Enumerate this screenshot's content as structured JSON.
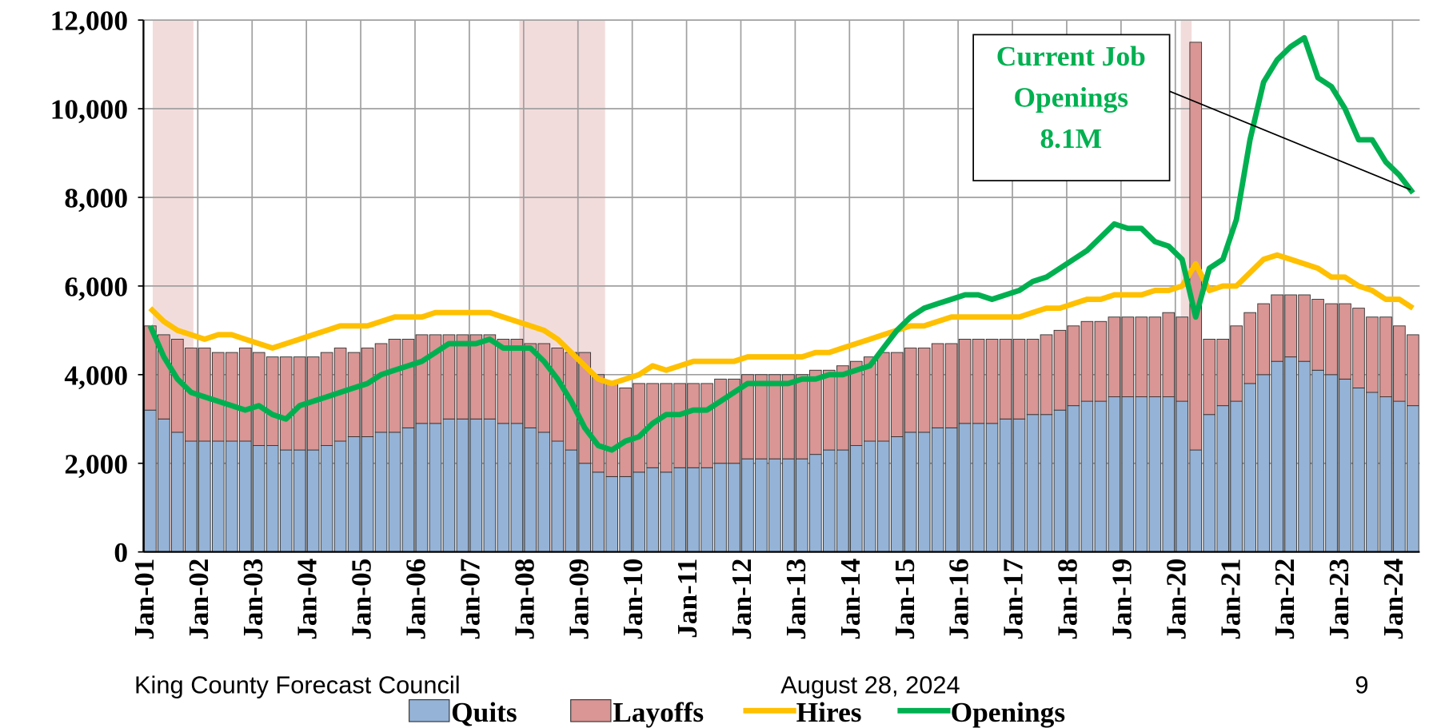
{
  "chart_data": {
    "type": "bar",
    "categories": [
      "Jan-01",
      null,
      null,
      null,
      "Jan-02",
      null,
      null,
      null,
      "Jan-03",
      null,
      null,
      null,
      "Jan-04",
      null,
      null,
      null,
      "Jan-05",
      null,
      null,
      null,
      "Jan-06",
      null,
      null,
      null,
      "Jan-07",
      null,
      null,
      null,
      "Jan-08",
      null,
      null,
      null,
      "Jan-09",
      null,
      null,
      null,
      "Jan-10",
      null,
      null,
      null,
      "Jan-11",
      null,
      null,
      null,
      "Jan-12",
      null,
      null,
      null,
      "Jan-13",
      null,
      null,
      null,
      "Jan-14",
      null,
      null,
      null,
      "Jan-15",
      null,
      null,
      null,
      "Jan-16",
      null,
      null,
      null,
      "Jan-17",
      null,
      null,
      null,
      "Jan-18",
      null,
      null,
      null,
      "Jan-19",
      null,
      null,
      null,
      "Jan-20",
      null,
      null,
      null,
      "Jan-21",
      null,
      null,
      null,
      "Jan-22",
      null,
      null,
      null,
      "Jan-23",
      null,
      null,
      null,
      "Jan-24",
      null
    ],
    "series": [
      {
        "name": "Quits",
        "type": "bar",
        "color": "#95b3d7",
        "values": [
          3200,
          3000,
          2700,
          2500,
          2500,
          2500,
          2500,
          2500,
          2400,
          2400,
          2300,
          2300,
          2300,
          2400,
          2500,
          2600,
          2600,
          2700,
          2700,
          2800,
          2900,
          2900,
          3000,
          3000,
          3000,
          3000,
          2900,
          2900,
          2800,
          2700,
          2500,
          2300,
          2000,
          1800,
          1700,
          1700,
          1800,
          1900,
          1800,
          1900,
          1900,
          1900,
          2000,
          2000,
          2100,
          2100,
          2100,
          2100,
          2100,
          2200,
          2300,
          2300,
          2400,
          2500,
          2500,
          2600,
          2700,
          2700,
          2800,
          2800,
          2900,
          2900,
          2900,
          3000,
          3000,
          3100,
          3100,
          3200,
          3300,
          3400,
          3400,
          3500,
          3500,
          3500,
          3500,
          3500,
          3400,
          2300,
          3100,
          3300,
          3400,
          3800,
          4000,
          4300,
          4400,
          4300,
          4100,
          4000,
          3900,
          3700,
          3600,
          3500,
          3400,
          3300
        ]
      },
      {
        "name": "Layoffs",
        "type": "bar",
        "color": "#d99694",
        "values": [
          1900,
          1900,
          2100,
          2100,
          2100,
          2000,
          2000,
          2100,
          2100,
          2000,
          2100,
          2100,
          2100,
          2100,
          2100,
          1900,
          2000,
          2000,
          2100,
          2000,
          2000,
          2000,
          1900,
          1900,
          1900,
          1900,
          1900,
          1900,
          1900,
          2000,
          2100,
          2200,
          2500,
          2200,
          2100,
          2000,
          2000,
          1900,
          2000,
          1900,
          1900,
          1900,
          1900,
          1900,
          1900,
          1900,
          1900,
          1900,
          1900,
          1900,
          1800,
          1900,
          1900,
          1900,
          2000,
          1900,
          1900,
          1900,
          1900,
          1900,
          1900,
          1900,
          1900,
          1800,
          1800,
          1700,
          1800,
          1800,
          1800,
          1800,
          1800,
          1800,
          1800,
          1800,
          1800,
          1900,
          1900,
          9200,
          1700,
          1500,
          1700,
          1600,
          1600,
          1500,
          1400,
          1500,
          1600,
          1600,
          1700,
          1800,
          1700,
          1800,
          1700,
          1600
        ]
      },
      {
        "name": "Hires",
        "type": "line",
        "color": "#ffc000",
        "values": [
          5500,
          5200,
          5000,
          4900,
          4800,
          4900,
          4900,
          4800,
          4700,
          4600,
          4700,
          4800,
          4900,
          5000,
          5100,
          5100,
          5100,
          5200,
          5300,
          5300,
          5300,
          5400,
          5400,
          5400,
          5400,
          5400,
          5300,
          5200,
          5100,
          5000,
          4800,
          4500,
          4200,
          3900,
          3800,
          3900,
          4000,
          4200,
          4100,
          4200,
          4300,
          4300,
          4300,
          4300,
          4400,
          4400,
          4400,
          4400,
          4400,
          4500,
          4500,
          4600,
          4700,
          4800,
          4900,
          5000,
          5100,
          5100,
          5200,
          5300,
          5300,
          5300,
          5300,
          5300,
          5300,
          5400,
          5500,
          5500,
          5600,
          5700,
          5700,
          5800,
          5800,
          5800,
          5900,
          5900,
          6000,
          6500,
          5900,
          6000,
          6000,
          6300,
          6600,
          6700,
          6600,
          6500,
          6400,
          6200,
          6200,
          6000,
          5900,
          5700,
          5700,
          5500
        ]
      },
      {
        "name": "Openings",
        "type": "line",
        "color": "#00b050",
        "values": [
          5100,
          4400,
          3900,
          3600,
          3500,
          3400,
          3300,
          3200,
          3300,
          3100,
          3000,
          3300,
          3400,
          3500,
          3600,
          3700,
          3800,
          4000,
          4100,
          4200,
          4300,
          4500,
          4700,
          4700,
          4700,
          4800,
          4600,
          4600,
          4600,
          4300,
          3900,
          3400,
          2800,
          2400,
          2300,
          2500,
          2600,
          2900,
          3100,
          3100,
          3200,
          3200,
          3400,
          3600,
          3800,
          3800,
          3800,
          3800,
          3900,
          3900,
          4000,
          4000,
          4100,
          4200,
          4600,
          5000,
          5300,
          5500,
          5600,
          5700,
          5800,
          5800,
          5700,
          5800,
          5900,
          6100,
          6200,
          6400,
          6600,
          6800,
          7100,
          7400,
          7300,
          7300,
          7000,
          6900,
          6600,
          5300,
          6400,
          6600,
          7500,
          9300,
          10600,
          11100,
          11400,
          11600,
          10700,
          10500,
          10000,
          9300,
          9300,
          8800,
          8500,
          8100
        ]
      }
    ],
    "recession_shading": [
      [
        2001.17,
        2001.92
      ],
      [
        2007.92,
        2009.5
      ],
      [
        2020.1,
        2020.3
      ]
    ],
    "ylim": [
      0,
      12000
    ],
    "yticks": [
      0,
      {
        "value": 2000,
        "label": "2,000"
      },
      {
        "value": 4000,
        "label": "4,000"
      },
      {
        "value": 6000,
        "label": "6,000"
      },
      {
        "value": 8000,
        "label": "8,000"
      },
      {
        "value": 10000,
        "label": "10,000"
      },
      {
        "value": 12000,
        "label": "12,000"
      }
    ],
    "grid": true,
    "annotation": {
      "lines": [
        "Current Job",
        "Openings",
        "8.1M"
      ],
      "color": "#00b050"
    },
    "footer": {
      "left": "King County Forecast Council",
      "center": "August 28, 2024",
      "right": "9"
    }
  }
}
